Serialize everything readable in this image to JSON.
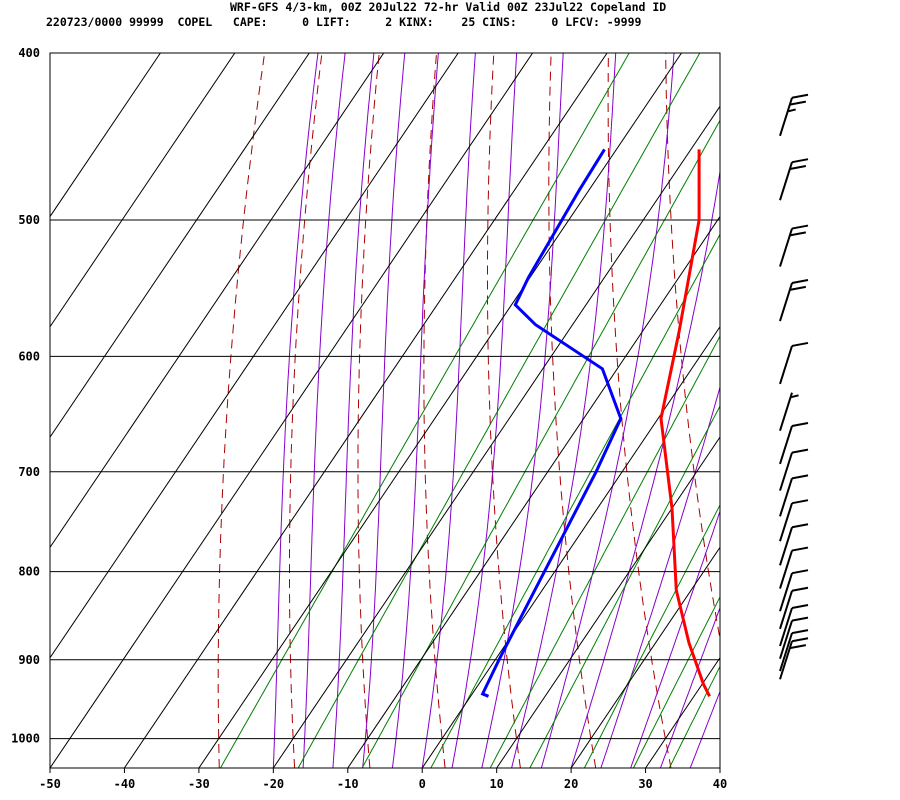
{
  "header": {
    "title": "WRF-GFS 4/3-km, 00Z 20Jul22 72-hr Valid 00Z 23Jul22 Copeland ID",
    "stats": "220723/0000 99999  COPEL   CAPE:     0 LIFT:     2 KINX:    25 CINS:     0 LFCV: -9999"
  },
  "colors": {
    "temperature": "#ff0000",
    "dewpoint": "#0000ff",
    "dry_adiabat": "#aa0000",
    "moist_adiabat": "#8800cc",
    "mixing_ratio": "#008000",
    "isotherm_isobar": "#000000",
    "wind_barb": "#000000"
  },
  "chart_data": {
    "type": "line",
    "diagram": "skew-T",
    "x_ticks": [
      -50,
      -40,
      -30,
      -20,
      -10,
      0,
      10,
      20,
      30,
      40
    ],
    "y_ticks": [
      400,
      500,
      600,
      700,
      800,
      900,
      1000
    ],
    "xlim": [
      -50,
      40
    ],
    "ylim": [
      1040,
      400
    ],
    "y_scale": "log",
    "series": [
      {
        "key": "temperature",
        "points": [
          [
            32.1,
            945
          ],
          [
            30.2,
            930
          ],
          [
            24.5,
            880
          ],
          [
            18.0,
            820
          ],
          [
            10.0,
            735
          ],
          [
            0.4,
            652
          ],
          [
            -5.1,
            580
          ],
          [
            -12.5,
            500
          ],
          [
            -18.9,
            455
          ]
        ]
      },
      {
        "key": "dewpoint",
        "points": [
          [
            2.4,
            945
          ],
          [
            1.4,
            942
          ],
          [
            0.5,
            900
          ],
          [
            -1.0,
            820
          ],
          [
            -3.5,
            700
          ],
          [
            -5.0,
            652
          ],
          [
            -12.0,
            610
          ],
          [
            -25.0,
            575
          ],
          [
            -29.5,
            560
          ],
          [
            -30.2,
            540
          ],
          [
            -31.3,
            480
          ],
          [
            -31.6,
            455
          ]
        ]
      }
    ],
    "wind_barbs_kt": [
      {
        "pressure": 920,
        "speed": 20
      },
      {
        "pressure": 910,
        "speed": 10
      },
      {
        "pressure": 895,
        "speed": 10
      },
      {
        "pressure": 880,
        "speed": 10
      },
      {
        "pressure": 860,
        "speed": 10
      },
      {
        "pressure": 840,
        "speed": 10
      },
      {
        "pressure": 815,
        "speed": 10
      },
      {
        "pressure": 790,
        "speed": 10
      },
      {
        "pressure": 765,
        "speed": 10
      },
      {
        "pressure": 740,
        "speed": 10
      },
      {
        "pressure": 715,
        "speed": 10
      },
      {
        "pressure": 690,
        "speed": 10
      },
      {
        "pressure": 660,
        "speed": 5
      },
      {
        "pressure": 620,
        "speed": 10
      },
      {
        "pressure": 570,
        "speed": 20
      },
      {
        "pressure": 530,
        "speed": 20
      },
      {
        "pressure": 485,
        "speed": 20
      },
      {
        "pressure": 445,
        "speed": 25
      }
    ]
  }
}
